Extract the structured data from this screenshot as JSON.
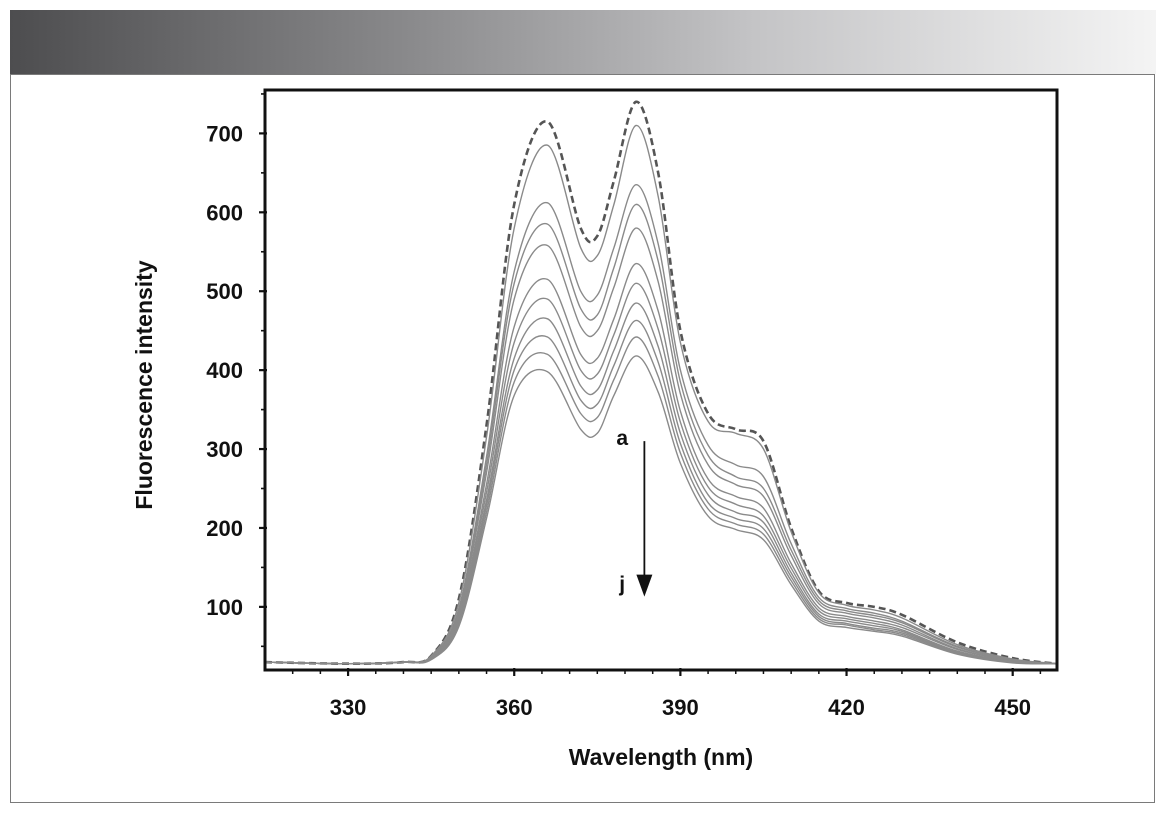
{
  "chart_data": {
    "type": "line",
    "xlabel": "Wavelength (nm)",
    "ylabel": "Fluorescence intensity",
    "xlim": [
      315,
      458
    ],
    "ylim": [
      20,
      755
    ],
    "xticks": [
      330,
      360,
      390,
      420,
      450
    ],
    "yticks": [
      100,
      200,
      300,
      400,
      500,
      600,
      700
    ],
    "grid": false,
    "legend": "none",
    "colors": {
      "axis": "#111111",
      "curve": "#8a8a8a",
      "dashed": "#555555",
      "banner_dark": "#4d4d4f"
    },
    "annotations": [
      {
        "text": "a",
        "x": 379.5,
        "y": 305
      },
      {
        "text": "j",
        "x": 379.5,
        "y": 120
      }
    ],
    "arrow": {
      "x": 383.5,
      "y_from": 310,
      "y_to": 118
    },
    "x": [
      315,
      330,
      340,
      345,
      350,
      355,
      360,
      366,
      372,
      375,
      378,
      382,
      386,
      390,
      395,
      400,
      405,
      410,
      415,
      420,
      425,
      430,
      440,
      450,
      458
    ],
    "series": [
      {
        "style": "dashed",
        "values": [
          30,
          28,
          30,
          38,
          110,
          330,
          610,
          715,
          580,
          570,
          640,
          740,
          650,
          450,
          345,
          325,
          310,
          200,
          120,
          105,
          100,
          90,
          55,
          35,
          28
        ]
      },
      {
        "values": [
          30,
          28,
          30,
          38,
          105,
          315,
          580,
          685,
          555,
          545,
          610,
          710,
          620,
          435,
          335,
          320,
          300,
          195,
          118,
          102,
          96,
          86,
          52,
          34,
          28
        ]
      },
      {
        "values": [
          30,
          28,
          30,
          37,
          98,
          290,
          525,
          612,
          500,
          495,
          555,
          635,
          560,
          400,
          305,
          280,
          265,
          180,
          112,
          98,
          92,
          82,
          50,
          33,
          28
        ]
      },
      {
        "values": [
          30,
          28,
          30,
          37,
          95,
          280,
          510,
          585,
          478,
          470,
          530,
          610,
          538,
          385,
          292,
          265,
          250,
          172,
          108,
          95,
          89,
          80,
          49,
          33,
          28
        ]
      },
      {
        "values": [
          30,
          28,
          30,
          36,
          92,
          270,
          490,
          558,
          455,
          450,
          505,
          580,
          512,
          370,
          280,
          255,
          240,
          165,
          104,
          92,
          86,
          77,
          47,
          32,
          28
        ]
      },
      {
        "values": [
          30,
          28,
          30,
          36,
          88,
          255,
          455,
          515,
          420,
          415,
          465,
          535,
          475,
          348,
          262,
          240,
          225,
          155,
          99,
          88,
          82,
          74,
          46,
          32,
          28
        ]
      },
      {
        "values": [
          30,
          28,
          30,
          35,
          85,
          245,
          435,
          490,
          400,
          395,
          445,
          510,
          452,
          334,
          252,
          230,
          215,
          149,
          95,
          85,
          79,
          71,
          44,
          31,
          28
        ]
      },
      {
        "values": [
          30,
          28,
          30,
          35,
          82,
          235,
          415,
          465,
          380,
          375,
          425,
          485,
          430,
          320,
          242,
          220,
          207,
          143,
          91,
          82,
          76,
          69,
          43,
          31,
          28
        ]
      },
      {
        "values": [
          30,
          28,
          30,
          34,
          80,
          228,
          400,
          442,
          362,
          357,
          406,
          463,
          410,
          307,
          232,
          212,
          199,
          138,
          88,
          79,
          73,
          67,
          42,
          30,
          28
        ]
      },
      {
        "values": [
          30,
          28,
          30,
          34,
          77,
          220,
          385,
          420,
          345,
          340,
          388,
          442,
          392,
          295,
          224,
          205,
          192,
          133,
          85,
          77,
          71,
          65,
          41,
          30,
          28
        ]
      },
      {
        "values": [
          30,
          28,
          30,
          33,
          75,
          212,
          368,
          398,
          325,
          320,
          368,
          418,
          372,
          282,
          215,
          198,
          185,
          128,
          82,
          74,
          69,
          63,
          40,
          29,
          28
        ]
      }
    ]
  }
}
